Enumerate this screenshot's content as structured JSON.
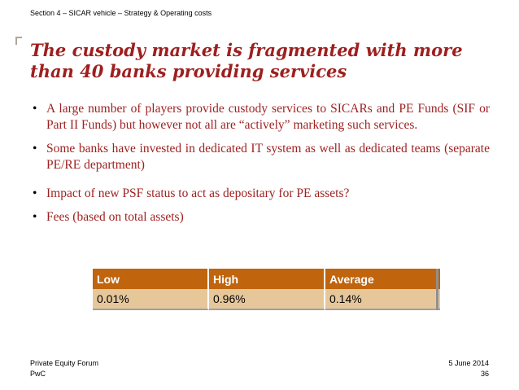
{
  "header": {
    "section": "Section 4 – SICAR vehicle – Strategy & Operating costs"
  },
  "slide": {
    "title": "The custody market is fragmented with more than 40 banks providing services",
    "bullet_marker": "•",
    "bullets": [
      "A large number of players provide custody services to SICARs and PE Funds (SIF or Part II Funds) but however not all are “actively” marketing such services.",
      "Some banks have invested in dedicated IT system as well as dedicated teams (separate PE/RE department)",
      "Impact of new PSF status to act as depositary for PE assets?",
      "Fees (based on total assets)"
    ]
  },
  "fees_table": {
    "headers": [
      "Low",
      "High",
      "Average"
    ],
    "rows": [
      [
        "0.01%",
        "0.96%",
        "0.14%"
      ]
    ],
    "colors": {
      "header_bg": "#c0640d",
      "cell_bg": "#e6c79a"
    }
  },
  "footer": {
    "organization": "Private Equity Forum",
    "company": "PwC",
    "date": "5 June 2014",
    "page_number": "36"
  },
  "colors": {
    "accent": "#9e1f1f"
  }
}
